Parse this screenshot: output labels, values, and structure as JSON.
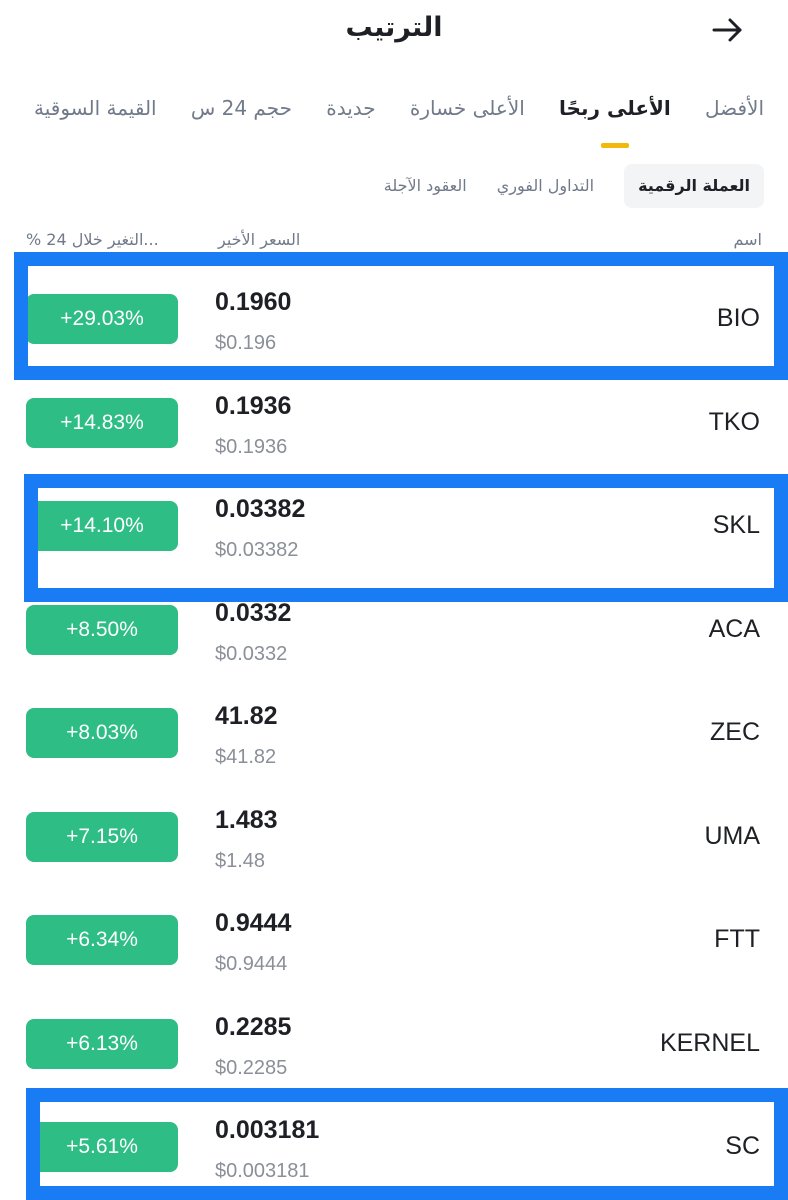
{
  "header": {
    "title": "الترتيب",
    "back_icon": "arrow-right-icon"
  },
  "tabs": [
    {
      "label": "الأفضل",
      "active": false
    },
    {
      "label": "الأعلى ربحًا",
      "active": true
    },
    {
      "label": "الأعلى خسارة",
      "active": false
    },
    {
      "label": "جديدة",
      "active": false
    },
    {
      "label": "حجم 24 س",
      "active": false
    },
    {
      "label": "القيمة السوقية",
      "active": false
    }
  ],
  "subtabs": [
    {
      "label": "العملة الرقمية",
      "active": true
    },
    {
      "label": "التداول الفوري",
      "active": false
    },
    {
      "label": "العقود الآجلة",
      "active": false
    }
  ],
  "columns": {
    "name": "اسم",
    "price": "السعر الأخير",
    "change": "% التغير خلال 24..."
  },
  "rows": [
    {
      "symbol": "BIO",
      "price": "0.1960",
      "price_usd": "$0.196",
      "change": "+29.03%",
      "highlighted": true
    },
    {
      "symbol": "TKO",
      "price": "0.1936",
      "price_usd": "$0.1936",
      "change": "+14.83%",
      "highlighted": false
    },
    {
      "symbol": "SKL",
      "price": "0.03382",
      "price_usd": "$0.03382",
      "change": "+14.10%",
      "highlighted": true
    },
    {
      "symbol": "ACA",
      "price": "0.0332",
      "price_usd": "$0.0332",
      "change": "+8.50%",
      "highlighted": false
    },
    {
      "symbol": "ZEC",
      "price": "41.82",
      "price_usd": "$41.82",
      "change": "+8.03%",
      "highlighted": false
    },
    {
      "symbol": "UMA",
      "price": "1.483",
      "price_usd": "$1.48",
      "change": "+7.15%",
      "highlighted": false
    },
    {
      "symbol": "FTT",
      "price": "0.9444",
      "price_usd": "$0.9444",
      "change": "+6.34%",
      "highlighted": false
    },
    {
      "symbol": "KERNEL",
      "price": "0.2285",
      "price_usd": "$0.2285",
      "change": "+6.13%",
      "highlighted": false
    },
    {
      "symbol": "SC",
      "price": "0.003181",
      "price_usd": "$0.003181",
      "change": "+5.61%",
      "highlighted": true
    }
  ],
  "colors": {
    "positive": "#2ebd85",
    "accent": "#f0b90b",
    "highlight_box": "#1a7cf4"
  }
}
